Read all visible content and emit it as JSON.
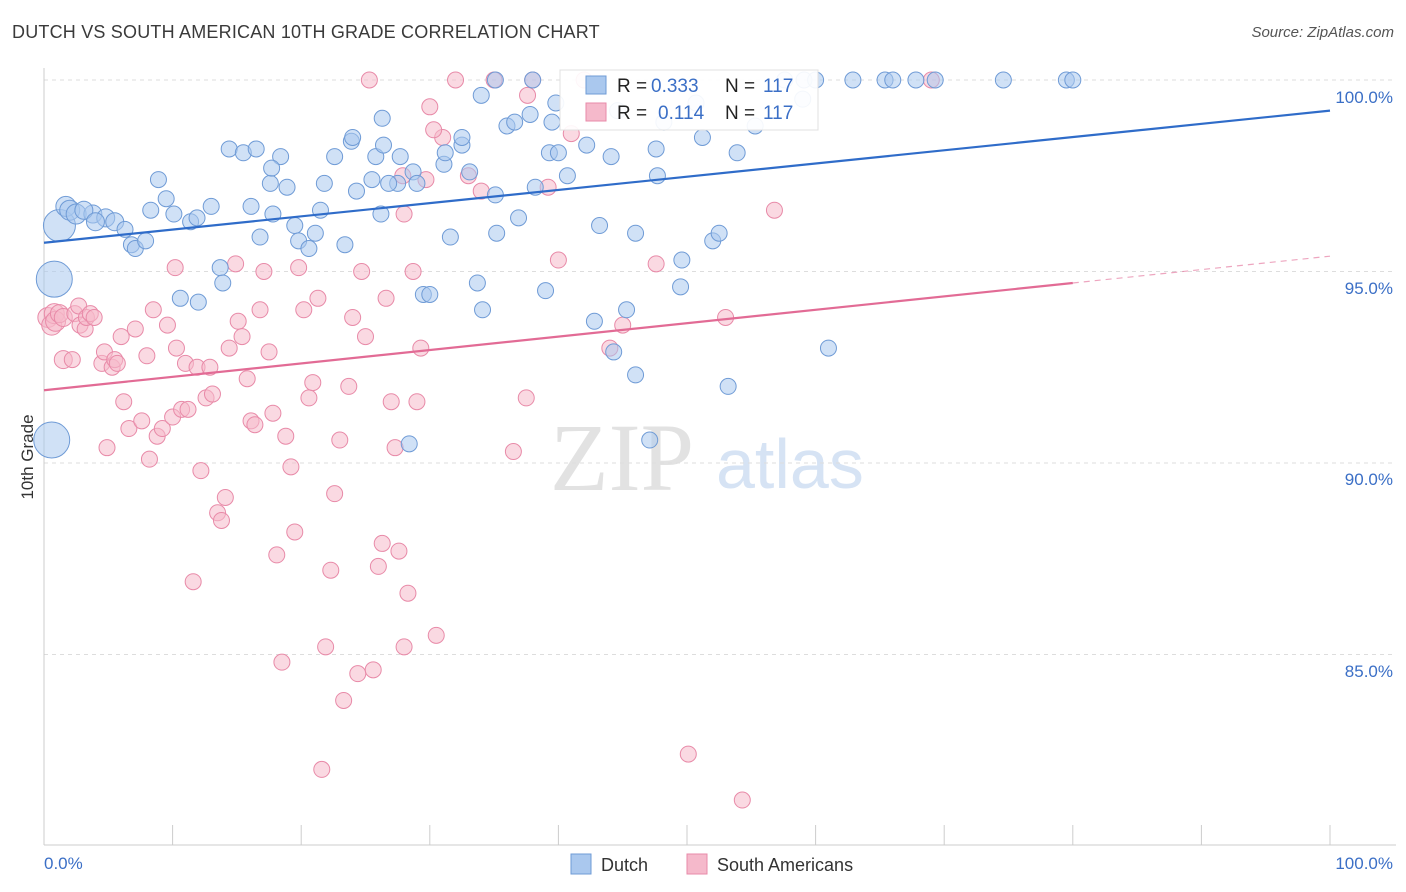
{
  "header": {
    "title": "DUTCH VS SOUTH AMERICAN 10TH GRADE CORRELATION CHART",
    "source": "Source: ZipAtlas.com"
  },
  "watermark": {
    "zip": "ZIP",
    "atlas": "atlas"
  },
  "stats_box": {
    "rows": [
      {
        "r_label": "R =",
        "r_value": "0.333",
        "n_label": "N =",
        "n_value": "117"
      },
      {
        "r_label": "R =",
        "r_value": "0.114",
        "n_label": "N =",
        "n_value": "117"
      }
    ]
  },
  "legend": {
    "items": [
      "Dutch",
      "South Americans"
    ]
  },
  "axes": {
    "ylabel": "10th Grade",
    "x_ticks": [
      "0.0%",
      "100.0%"
    ],
    "y_ticks": [
      "85.0%",
      "90.0%",
      "95.0%",
      "100.0%"
    ]
  },
  "colors": {
    "dutch_fill": "#aac8ee",
    "dutch_stroke": "#6f9bd6",
    "dutch_line": "#2f6cc9",
    "sa_fill": "#f5b9cb",
    "sa_stroke": "#e88aa8",
    "sa_line": "#e26b95"
  },
  "chart_data": {
    "type": "scatter",
    "title": "DUTCH VS SOUTH AMERICAN 10TH GRADE CORRELATION CHART",
    "xlabel": "",
    "ylabel": "10th Grade",
    "xlim": [
      0,
      100
    ],
    "ylim": [
      80.5,
      100.8
    ],
    "grid": true,
    "legend_position": "bottom-center",
    "series": [
      {
        "name": "Dutch",
        "R": 0.333,
        "N": 117,
        "trend": {
          "x": [
            0,
            100
          ],
          "y": [
            95.75,
            99.2
          ]
        },
        "points": [
          [
            1.2,
            96.2,
            16
          ],
          [
            0.8,
            94.8,
            18
          ],
          [
            0.6,
            90.6,
            18
          ],
          [
            1.7,
            96.7,
            10
          ],
          [
            2.0,
            96.6,
            10
          ],
          [
            2.5,
            96.5,
            10
          ],
          [
            3.8,
            96.5,
            9
          ],
          [
            3.1,
            96.6,
            9
          ],
          [
            4.8,
            96.4,
            9
          ],
          [
            4.0,
            96.3,
            9
          ],
          [
            5.5,
            96.3,
            9
          ],
          [
            6.3,
            96.1,
            8
          ],
          [
            6.8,
            95.7,
            8
          ],
          [
            7.1,
            95.6,
            8
          ],
          [
            7.9,
            95.8,
            8
          ],
          [
            8.3,
            96.6,
            8
          ],
          [
            8.9,
            97.4,
            8
          ],
          [
            9.5,
            96.9,
            8
          ],
          [
            10.1,
            96.5,
            8
          ],
          [
            11.4,
            96.3,
            8
          ],
          [
            11.9,
            96.4,
            8
          ],
          [
            13.0,
            96.7,
            8
          ],
          [
            13.7,
            95.1,
            8
          ],
          [
            13.9,
            94.7,
            8
          ],
          [
            14.4,
            98.2,
            8
          ],
          [
            15.5,
            98.1,
            8
          ],
          [
            16.1,
            96.7,
            8
          ],
          [
            16.5,
            98.2,
            8
          ],
          [
            17.6,
            97.3,
            8
          ],
          [
            16.8,
            95.9,
            8
          ],
          [
            17.8,
            96.5,
            8
          ],
          [
            18.4,
            98.0,
            8
          ],
          [
            18.9,
            97.2,
            8
          ],
          [
            19.5,
            96.2,
            8
          ],
          [
            19.8,
            95.8,
            8
          ],
          [
            20.6,
            95.6,
            8
          ],
          [
            21.5,
            96.6,
            8
          ],
          [
            21.8,
            97.3,
            8
          ],
          [
            22.6,
            98.0,
            8
          ],
          [
            23.4,
            95.7,
            8
          ],
          [
            23.9,
            98.4,
            8
          ],
          [
            24.3,
            97.1,
            8
          ],
          [
            25.5,
            97.4,
            8
          ],
          [
            25.8,
            98.0,
            8
          ],
          [
            26.2,
            96.5,
            8
          ],
          [
            26.4,
            98.3,
            8
          ],
          [
            27.5,
            97.3,
            8
          ],
          [
            27.7,
            98.0,
            8
          ],
          [
            28.7,
            97.6,
            8
          ],
          [
            29.0,
            97.3,
            8
          ],
          [
            29.5,
            94.4,
            8
          ],
          [
            30.0,
            94.4,
            8
          ],
          [
            31.1,
            97.8,
            8
          ],
          [
            31.2,
            98.1,
            8
          ],
          [
            31.6,
            95.9,
            8
          ],
          [
            32.5,
            98.3,
            8
          ],
          [
            32.5,
            98.5,
            8
          ],
          [
            34.0,
            99.6,
            8
          ],
          [
            33.7,
            94.7,
            8
          ],
          [
            34.1,
            94.0,
            8
          ],
          [
            35.1,
            97.0,
            8
          ],
          [
            35.2,
            96.0,
            8
          ],
          [
            36.0,
            98.8,
            8
          ],
          [
            36.6,
            98.9,
            8
          ],
          [
            36.9,
            96.4,
            8
          ],
          [
            38.0,
            100.0,
            8
          ],
          [
            38.2,
            97.2,
            8
          ],
          [
            39.0,
            94.5,
            8
          ],
          [
            39.3,
            98.1,
            8
          ],
          [
            39.8,
            99.4,
            8
          ],
          [
            40.0,
            98.1,
            8
          ],
          [
            40.7,
            97.5,
            8
          ],
          [
            42.8,
            93.7,
            8
          ],
          [
            43.2,
            96.2,
            8
          ],
          [
            44.1,
            98.0,
            8
          ],
          [
            44.3,
            92.9,
            8
          ],
          [
            45.3,
            94.0,
            8
          ],
          [
            46.0,
            92.3,
            8
          ],
          [
            46.0,
            96.0,
            8
          ],
          [
            47.1,
            90.6,
            8
          ],
          [
            47.6,
            98.2,
            8
          ],
          [
            47.7,
            97.5,
            8
          ],
          [
            49.5,
            94.6,
            8
          ],
          [
            49.6,
            95.3,
            8
          ],
          [
            50.7,
            99.4,
            8
          ],
          [
            51.2,
            98.5,
            8
          ],
          [
            52.0,
            95.8,
            8
          ],
          [
            52.5,
            96.0,
            8
          ],
          [
            53.2,
            92.0,
            8
          ],
          [
            53.9,
            98.1,
            8
          ],
          [
            55.3,
            98.8,
            8
          ],
          [
            57.6,
            100.0,
            8
          ],
          [
            59.0,
            99.5,
            8
          ],
          [
            59.1,
            100.0,
            8
          ],
          [
            60.0,
            100.0,
            8
          ],
          [
            61.0,
            93.0,
            8
          ],
          [
            62.9,
            100.0,
            8
          ],
          [
            65.4,
            100.0,
            8
          ],
          [
            66.0,
            100.0,
            8
          ],
          [
            67.8,
            100.0,
            8
          ],
          [
            69.3,
            100.0,
            8
          ],
          [
            74.6,
            100.0,
            8
          ],
          [
            79.5,
            100.0,
            8
          ],
          [
            80.0,
            100.0,
            8
          ],
          [
            24.0,
            98.5,
            8
          ],
          [
            28.4,
            90.5,
            8
          ],
          [
            35.1,
            100.0,
            8
          ],
          [
            26.8,
            97.3,
            8
          ],
          [
            21.1,
            96.0,
            8
          ],
          [
            17.7,
            97.7,
            8
          ],
          [
            12.0,
            94.2,
            8
          ],
          [
            10.6,
            94.3,
            8
          ],
          [
            26.3,
            99.0,
            8
          ],
          [
            37.8,
            99.1,
            8
          ],
          [
            39.5,
            98.9,
            8
          ],
          [
            42.2,
            98.3,
            8
          ],
          [
            44.6,
            99.2,
            8
          ],
          [
            48.2,
            98.9,
            8
          ],
          [
            33.1,
            97.6,
            8
          ]
        ]
      },
      {
        "name": "South Americans",
        "R": 0.114,
        "N": 117,
        "trend": {
          "x": [
            0,
            80
          ],
          "y": [
            91.9,
            94.7
          ]
        },
        "points": [
          [
            0.3,
            93.8,
            10
          ],
          [
            0.6,
            93.6,
            10
          ],
          [
            0.8,
            93.9,
            10
          ],
          [
            0.9,
            93.7,
            10
          ],
          [
            1.2,
            93.9,
            9
          ],
          [
            1.5,
            93.8,
            9
          ],
          [
            1.5,
            92.7,
            9
          ],
          [
            2.2,
            92.7,
            8
          ],
          [
            2.4,
            93.9,
            8
          ],
          [
            2.7,
            94.1,
            8
          ],
          [
            2.8,
            93.6,
            8
          ],
          [
            3.2,
            93.5,
            8
          ],
          [
            3.3,
            93.8,
            8
          ],
          [
            3.6,
            93.9,
            8
          ],
          [
            3.9,
            93.8,
            8
          ],
          [
            4.5,
            92.6,
            8
          ],
          [
            4.7,
            92.9,
            8
          ],
          [
            4.9,
            90.4,
            8
          ],
          [
            5.3,
            92.5,
            8
          ],
          [
            5.5,
            92.7,
            8
          ],
          [
            5.7,
            92.6,
            8
          ],
          [
            6.0,
            93.3,
            8
          ],
          [
            6.2,
            91.6,
            8
          ],
          [
            6.6,
            90.9,
            8
          ],
          [
            7.1,
            93.5,
            8
          ],
          [
            7.6,
            91.1,
            8
          ],
          [
            8.0,
            92.8,
            8
          ],
          [
            8.2,
            90.1,
            8
          ],
          [
            8.5,
            94.0,
            8
          ],
          [
            8.8,
            90.7,
            8
          ],
          [
            9.2,
            90.9,
            8
          ],
          [
            9.6,
            93.6,
            8
          ],
          [
            10.0,
            91.2,
            8
          ],
          [
            10.3,
            93.0,
            8
          ],
          [
            10.7,
            91.4,
            8
          ],
          [
            11.0,
            92.6,
            8
          ],
          [
            11.2,
            91.4,
            8
          ],
          [
            11.6,
            86.9,
            8
          ],
          [
            11.9,
            92.5,
            8
          ],
          [
            12.2,
            89.8,
            8
          ],
          [
            12.6,
            91.7,
            8
          ],
          [
            12.9,
            92.5,
            8
          ],
          [
            13.1,
            91.8,
            8
          ],
          [
            13.5,
            88.7,
            8
          ],
          [
            13.8,
            88.5,
            8
          ],
          [
            14.1,
            89.1,
            8
          ],
          [
            14.4,
            93.0,
            8
          ],
          [
            14.9,
            95.2,
            8
          ],
          [
            15.1,
            93.7,
            8
          ],
          [
            15.4,
            93.3,
            8
          ],
          [
            15.8,
            92.2,
            8
          ],
          [
            16.1,
            91.1,
            8
          ],
          [
            16.4,
            91.0,
            8
          ],
          [
            16.8,
            94.0,
            8
          ],
          [
            17.1,
            95.0,
            8
          ],
          [
            17.5,
            92.9,
            8
          ],
          [
            17.8,
            91.3,
            8
          ],
          [
            18.1,
            87.6,
            8
          ],
          [
            18.5,
            84.8,
            8
          ],
          [
            18.8,
            90.7,
            8
          ],
          [
            19.2,
            89.9,
            8
          ],
          [
            19.5,
            88.2,
            8
          ],
          [
            19.8,
            95.1,
            8
          ],
          [
            20.2,
            94.0,
            8
          ],
          [
            20.6,
            91.7,
            8
          ],
          [
            20.9,
            92.1,
            8
          ],
          [
            21.3,
            94.3,
            8
          ],
          [
            21.6,
            82.0,
            8
          ],
          [
            21.9,
            85.2,
            8
          ],
          [
            22.3,
            87.2,
            8
          ],
          [
            22.6,
            89.2,
            8
          ],
          [
            23.0,
            90.6,
            8
          ],
          [
            23.3,
            83.8,
            8
          ],
          [
            23.7,
            92.0,
            8
          ],
          [
            24.0,
            93.8,
            8
          ],
          [
            24.4,
            84.5,
            8
          ],
          [
            24.7,
            95.0,
            8
          ],
          [
            25.0,
            93.3,
            8
          ],
          [
            25.3,
            100.0,
            8
          ],
          [
            25.6,
            84.6,
            8
          ],
          [
            26.0,
            87.3,
            8
          ],
          [
            26.3,
            87.9,
            8
          ],
          [
            26.6,
            94.3,
            8
          ],
          [
            27.0,
            91.6,
            8
          ],
          [
            27.3,
            90.4,
            8
          ],
          [
            27.6,
            87.7,
            8
          ],
          [
            28.0,
            85.2,
            8
          ],
          [
            28.3,
            86.6,
            8
          ],
          [
            28.7,
            95.0,
            8
          ],
          [
            29.0,
            91.6,
            8
          ],
          [
            29.3,
            93.0,
            8
          ],
          [
            29.7,
            97.4,
            8
          ],
          [
            30.0,
            99.3,
            8
          ],
          [
            30.5,
            85.5,
            8
          ],
          [
            31.0,
            98.5,
            8
          ],
          [
            32.0,
            100.0,
            8
          ],
          [
            33.0,
            97.5,
            8
          ],
          [
            34.0,
            97.1,
            8
          ],
          [
            35.0,
            100.0,
            8
          ],
          [
            36.5,
            90.3,
            8
          ],
          [
            37.5,
            91.7,
            8
          ],
          [
            38.0,
            100.0,
            8
          ],
          [
            39.2,
            97.2,
            8
          ],
          [
            40.0,
            95.3,
            8
          ],
          [
            41.0,
            98.6,
            8
          ],
          [
            42.0,
            100.0,
            8
          ],
          [
            44.0,
            93.0,
            8
          ],
          [
            45.0,
            93.6,
            8
          ],
          [
            47.6,
            95.2,
            8
          ],
          [
            50.1,
            82.4,
            8
          ],
          [
            53.0,
            93.8,
            8
          ],
          [
            54.3,
            81.2,
            8
          ],
          [
            56.8,
            96.6,
            8
          ],
          [
            69.0,
            100.0,
            8
          ],
          [
            28.0,
            96.5,
            8
          ],
          [
            10.2,
            95.1,
            8
          ],
          [
            30.3,
            98.7,
            8
          ],
          [
            27.9,
            97.5,
            8
          ],
          [
            37.6,
            99.6,
            8
          ]
        ]
      }
    ]
  }
}
